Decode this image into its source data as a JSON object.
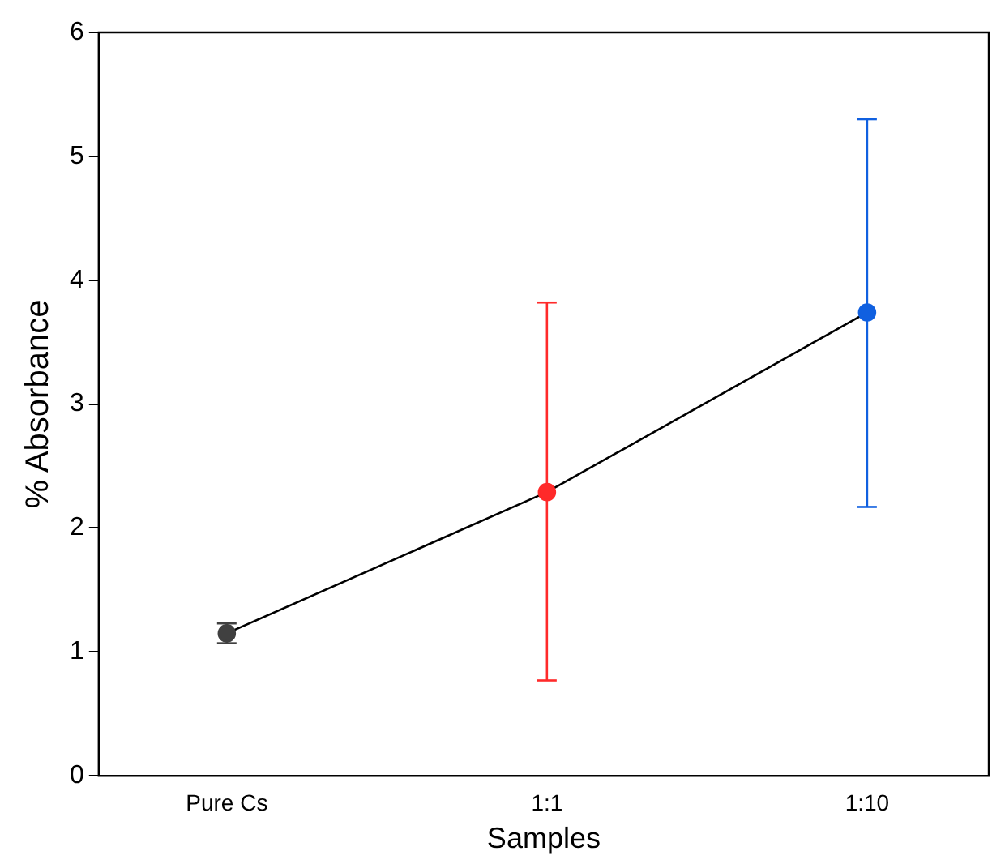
{
  "chart_data": {
    "type": "line",
    "xlabel": "Samples",
    "ylabel": "% Absorbance",
    "categories": [
      "Pure Cs",
      "1:1",
      "1:10"
    ],
    "series": [
      {
        "color": "#000000",
        "colors": [
          "#404040",
          "#ff2a2a",
          "#1060e0"
        ],
        "values": [
          1.15,
          2.29,
          3.74
        ],
        "errors": [
          [
            1.07,
            1.23
          ],
          [
            0.77,
            3.82
          ],
          [
            2.17,
            5.3
          ]
        ]
      }
    ],
    "ylim": [
      0,
      6
    ],
    "yticks": [
      0,
      1,
      2,
      3,
      4,
      5,
      6
    ],
    "marker": "circle",
    "line_style": "solid",
    "grid": false,
    "legend": false
  }
}
